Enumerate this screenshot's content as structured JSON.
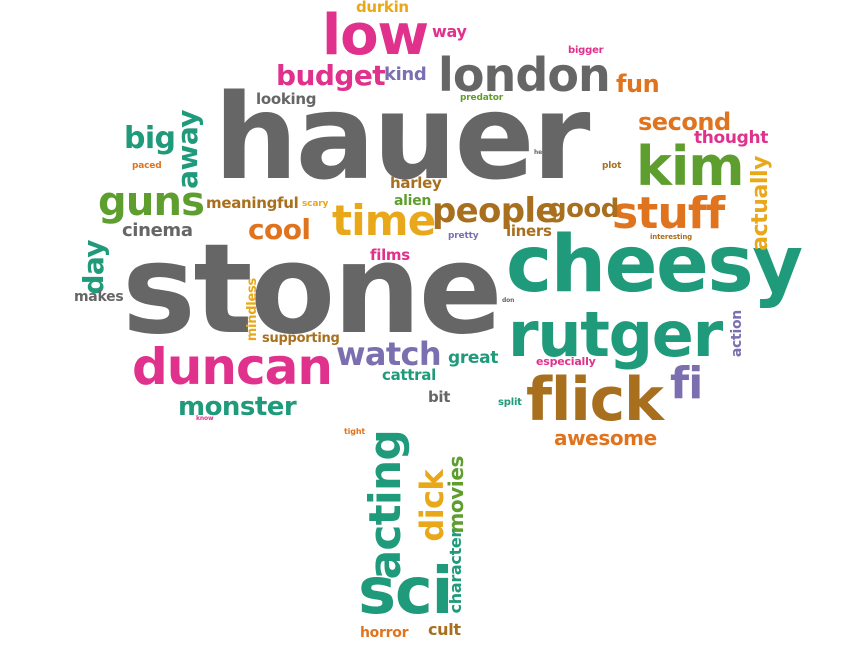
{
  "colors": {
    "gray": "#666666",
    "pink": "#e0318c",
    "teal": "#1f9a7a",
    "green": "#5e9e2e",
    "orange": "#e0741e",
    "yellow": "#e8a81a",
    "brown": "#a8701e",
    "purple": "#7b6fb0"
  },
  "words": {
    "hauer": "hauer",
    "stone": "stone",
    "cheesy": "cheesy",
    "rutger": "rutger",
    "flick": "flick",
    "duncan": "duncan",
    "low": "low",
    "london": "london",
    "kim": "kim",
    "stuff": "stuff",
    "sci": "sci",
    "acting": "acting",
    "time": "time",
    "people": "people",
    "guns": "guns",
    "watch": "watch",
    "budget": "budget",
    "monster": "monster",
    "dick": "dick",
    "fi": "fi",
    "away": "away",
    "big": "big",
    "day": "day",
    "cool": "cool",
    "good": "good",
    "second": "second",
    "actually": "actually",
    "movies": "movies",
    "awesome": "awesome",
    "character": "character",
    "fun": "fun",
    "cinema": "cinema",
    "meaningful": "meaningful",
    "thought": "thought",
    "way": "way",
    "durkin": "durkin",
    "kind": "kind",
    "looking": "looking",
    "harley": "harley",
    "alien": "alien",
    "liners": "liners",
    "films": "films",
    "great": "great",
    "cattral": "cattral",
    "mindless": "mindless",
    "supporting": "supporting",
    "makes": "makes",
    "action": "action",
    "horror": "horror",
    "cult": "cult",
    "bit": "bit",
    "especially": "especially",
    "split": "split",
    "tight": "tight",
    "bigger": "bigger",
    "predator": "predator",
    "paced": "paced",
    "scary": "scary",
    "pretty": "pretty",
    "plot": "plot",
    "interesting": "interesting",
    "hell": "hell",
    "don": "don",
    "know": "know"
  }
}
